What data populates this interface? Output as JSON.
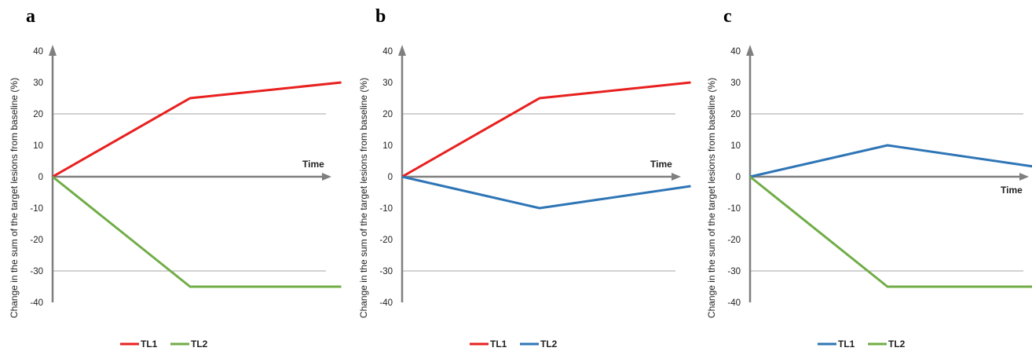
{
  "chart_data": [
    {
      "panel": "a",
      "type": "line",
      "xlabel": "Time",
      "ylabel": "Change in the sum of the target lesions from baseline (%)",
      "ylim": [
        -40,
        40
      ],
      "yticks": [
        40,
        30,
        20,
        10,
        0,
        -10,
        -20,
        -30,
        -40
      ],
      "grid_lines": [
        20,
        -30
      ],
      "legend_placement": "bottom-center",
      "series": [
        {
          "name": "TL1",
          "color": "#e8201f",
          "x": [
            0,
            1,
            2.1
          ],
          "y": [
            0,
            25,
            30
          ]
        },
        {
          "name": "TL2",
          "color": "#70ad47",
          "x": [
            0,
            1,
            2.1
          ],
          "y": [
            0,
            -35,
            -35
          ]
        }
      ]
    },
    {
      "panel": "b",
      "type": "line",
      "xlabel": "Time",
      "ylabel": "Change in the sum of the target lesions from baseline (%)",
      "ylim": [
        -40,
        40
      ],
      "yticks": [
        40,
        30,
        20,
        10,
        0,
        -10,
        -20,
        -30,
        -40
      ],
      "grid_lines": [
        20,
        -30
      ],
      "legend_placement": "bottom-center",
      "series": [
        {
          "name": "TL1",
          "color": "#e8201f",
          "x": [
            0,
            1,
            2.1
          ],
          "y": [
            0,
            25,
            30
          ]
        },
        {
          "name": "TL2",
          "color": "#2e75b6",
          "x": [
            0,
            1,
            2.1
          ],
          "y": [
            0,
            -10,
            -3
          ]
        }
      ]
    },
    {
      "panel": "c",
      "type": "line",
      "xlabel": "Time",
      "ylabel": "Change in the sum of the target lesions from baseline (%)",
      "ylim": [
        -40,
        40
      ],
      "yticks": [
        40,
        30,
        20,
        10,
        0,
        -10,
        -20,
        -30,
        -40
      ],
      "grid_lines": [
        20,
        -30
      ],
      "legend_placement": "bottom-center",
      "series": [
        {
          "name": "TL1",
          "color": "#2e75b6",
          "x": [
            0,
            1,
            2.1
          ],
          "y": [
            0,
            10,
            3
          ]
        },
        {
          "name": "TL2",
          "color": "#70ad47",
          "x": [
            0,
            1,
            2.1
          ],
          "y": [
            0,
            -35,
            -35
          ]
        }
      ]
    }
  ]
}
